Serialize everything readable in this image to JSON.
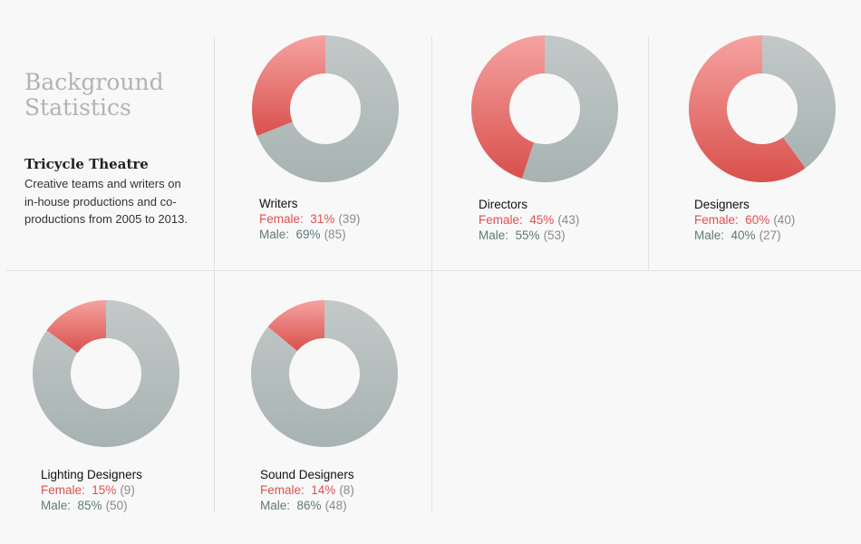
{
  "intro": {
    "title_line1": "Background",
    "title_line2": "Statistics",
    "subtitle": "Tricycle Theatre",
    "description": "Creative teams and writers on in-house productions and co-productions from 2005 to 2013."
  },
  "colors": {
    "female_light": "#f5a3a1",
    "female_dark": "#d9504c",
    "male_light": "#c3c9c8",
    "male_dark": "#a6b3b2",
    "female_text": "#e0514f",
    "male_text": "#5f7a79"
  },
  "chart_data": [
    {
      "type": "pie",
      "title": "Writers",
      "series": [
        {
          "name": "Female",
          "percent": "31%",
          "value": 31,
          "count": "(39)"
        },
        {
          "name": "Male",
          "percent": "69%",
          "value": 69,
          "count": "(85)"
        }
      ]
    },
    {
      "type": "pie",
      "title": "Directors",
      "series": [
        {
          "name": "Female",
          "percent": "45%",
          "value": 45,
          "count": "(43)"
        },
        {
          "name": "Male",
          "percent": "55%",
          "value": 55,
          "count": "(53)"
        }
      ]
    },
    {
      "type": "pie",
      "title": "Designers",
      "series": [
        {
          "name": "Female",
          "percent": "60%",
          "value": 60,
          "count": "(40)"
        },
        {
          "name": "Male",
          "percent": "40%",
          "value": 40,
          "count": "(27)"
        }
      ]
    },
    {
      "type": "pie",
      "title": "Lighting Designers",
      "series": [
        {
          "name": "Female",
          "percent": "15%",
          "value": 15,
          "count": "(9)"
        },
        {
          "name": "Male",
          "percent": "85%",
          "value": 85,
          "count": "(50)"
        }
      ]
    },
    {
      "type": "pie",
      "title": "Sound Designers",
      "series": [
        {
          "name": "Female",
          "percent": "14%",
          "value": 14,
          "count": "(8)"
        },
        {
          "name": "Male",
          "percent": "86%",
          "value": 86,
          "count": "(48)"
        }
      ]
    }
  ]
}
